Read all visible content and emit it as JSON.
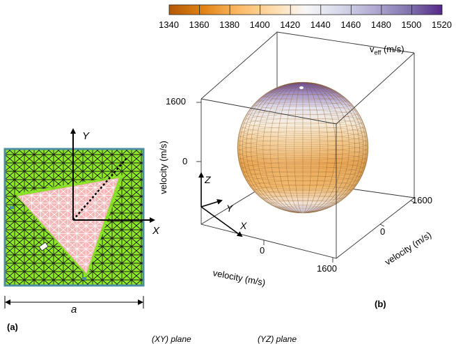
{
  "panel_a": {
    "label": "(a)",
    "axis_x": "X",
    "axis_y": "Y",
    "dimension": "a",
    "colors": {
      "matrix_fill": "#8ee82a",
      "mesh_line": "#1b1b1b",
      "inclusion_fill": "#f4b6b6",
      "inclusion_mesh": "#ffffff",
      "border": "#4b8ea0"
    }
  },
  "panel_b": {
    "label": "(b)",
    "colorbar_ticks": [
      "1340",
      "1360",
      "1380",
      "1400",
      "1420",
      "1440",
      "1460",
      "1480",
      "1500",
      "1520"
    ],
    "colorbar_title": "veff (m/s)",
    "colorbar_title_main": "v",
    "colorbar_title_sub": "eff",
    "colorbar_title_unit": " (m/s)",
    "colormap": [
      "#b35806",
      "#e08214",
      "#fdb863",
      "#fee0b6",
      "#f7f7f7",
      "#d8daeb",
      "#b2abd2",
      "#8073ac",
      "#542788"
    ],
    "axis_label": "velocity (m/s)",
    "vertical_ticks": [
      "1600",
      "0"
    ],
    "front_ticks": [
      "0",
      "1600"
    ],
    "side_ticks": [
      "0",
      "1600"
    ],
    "triad": {
      "z": "Z",
      "y": "Y",
      "x": "X"
    }
  },
  "bottom_fragments": [
    "(XY) plane",
    "(YZ) plane"
  ]
}
